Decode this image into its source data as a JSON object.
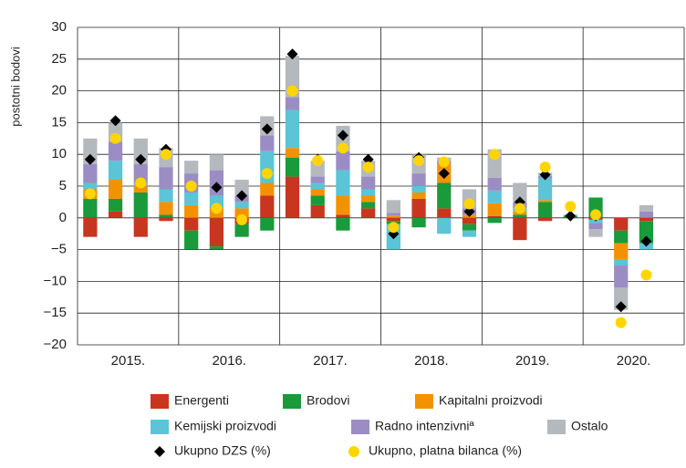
{
  "chart_data": {
    "type": "stacked_bar",
    "y_label": "postotni bodovi",
    "categories": [
      null,
      null,
      null,
      null,
      null,
      null,
      null,
      null,
      null,
      null,
      null,
      null,
      null,
      null,
      null,
      null,
      null,
      null,
      null,
      null,
      null,
      null,
      null
    ],
    "year_labels": [
      "2015.",
      "2016.",
      "2017.",
      "2018.",
      "2019.",
      "2020."
    ],
    "ylim": [
      -20,
      30
    ],
    "yticks": [
      {
        "value": -20,
        "label": "−20"
      },
      {
        "value": -15,
        "label": "−15"
      },
      {
        "value": -10,
        "label": "−10"
      },
      {
        "value": -5,
        "label": "−5"
      },
      0,
      5,
      10,
      15,
      20,
      25,
      30
    ],
    "grid": true,
    "series": [
      {
        "name": "Energenti",
        "color": "#c8361f",
        "values": [
          -3,
          1,
          -3,
          -0.5,
          -2,
          -4.5,
          -1,
          3.5,
          6.5,
          2,
          0.5,
          1.5,
          -0.5,
          3,
          1.5,
          -1,
          0.3,
          -3.5,
          -0.5,
          0,
          -0.3,
          -2,
          -0.5
        ]
      },
      {
        "name": "Brodovi",
        "color": "#1a9a3a",
        "values": [
          3,
          2,
          4,
          0.5,
          -3,
          -0.5,
          -2,
          -2,
          3,
          1.5,
          -2,
          1,
          -0.5,
          -1.5,
          4,
          -1,
          -0.8,
          0.5,
          2.5,
          0.3,
          3.2,
          -2,
          -3.5
        ]
      },
      {
        "name": "Kapitalni proizvodi",
        "color": "#f39200",
        "values": [
          1.5,
          3,
          1,
          2,
          2,
          1.5,
          1.5,
          2,
          1.5,
          1,
          3,
          1,
          0.3,
          1,
          3,
          0.5,
          2,
          0.5,
          0.3,
          0,
          0,
          -2.5,
          0
        ]
      },
      {
        "name": "Kemijski proizvodi",
        "color": "#5bc4d6",
        "values": [
          1,
          3,
          0.5,
          2,
          2,
          2,
          1,
          5,
          6,
          1,
          4,
          1,
          -4,
          1,
          -2.5,
          -1,
          2,
          0.5,
          3.5,
          0.2,
          -0.5,
          -1,
          -1
        ]
      },
      {
        "name": "Radno intenzivniª",
        "color": "#9b8dc4",
        "values": [
          3,
          3,
          3,
          3.5,
          3,
          4,
          1,
          2.5,
          2,
          1,
          3,
          2,
          0.5,
          2,
          0.5,
          1,
          2,
          1,
          0.3,
          0,
          -1,
          -3.5,
          1
        ]
      },
      {
        "name": "Ostalo",
        "color": "#b4b9bd",
        "values": [
          4,
          3,
          4,
          3,
          2,
          2.5,
          2.5,
          3,
          6.5,
          2.5,
          4,
          2.5,
          2,
          3,
          0.5,
          3,
          4.5,
          3,
          0.5,
          0,
          -1.2,
          -3.5,
          1
        ]
      },
      {
        "name": "Ukupno DZS (%)",
        "kind": "marker",
        "marker": "diamond",
        "color": "#000000",
        "values": [
          9.2,
          15.3,
          9.2,
          10.8,
          5,
          4.8,
          3.5,
          14,
          25.8,
          9.2,
          13,
          9.2,
          -2.5,
          9.5,
          7,
          1,
          10,
          2.5,
          6.8,
          0.3,
          0.3,
          -14,
          -3.7
        ]
      },
      {
        "name": "Ukupno, platna bilanca (%)",
        "kind": "marker",
        "marker": "circle",
        "color": "#ffd500",
        "values": [
          3.8,
          12.5,
          5.5,
          10,
          5,
          1.5,
          -0.3,
          7,
          20,
          9,
          11,
          8,
          -1.5,
          9,
          8.8,
          2.2,
          10,
          1.5,
          8,
          1.8,
          0.5,
          -16.5,
          -9
        ]
      }
    ]
  }
}
